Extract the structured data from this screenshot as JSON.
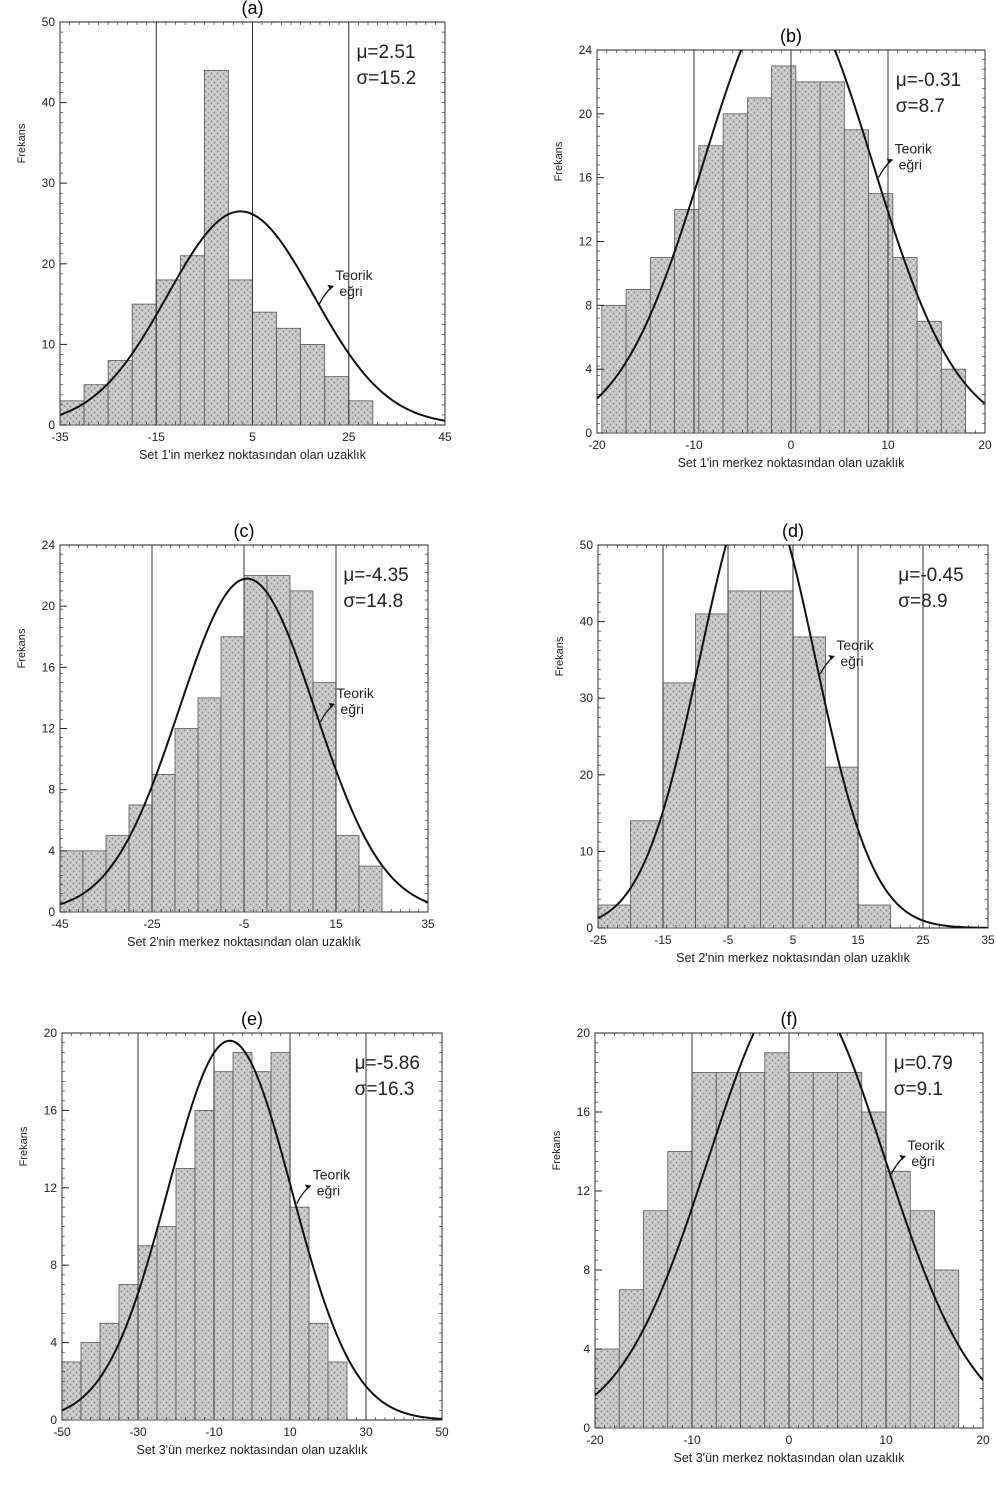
{
  "chart_data": [
    {
      "type": "bar",
      "panel": "(a)",
      "xlabel": "Set 1'in merkez noktasından olan uzaklık",
      "ylabel": "Frekans",
      "xlim": [
        -35,
        45
      ],
      "ylim": [
        0,
        50
      ],
      "x_ticks": [
        "-35",
        "-15",
        "5",
        "25",
        "45"
      ],
      "y_ticks": [
        "0",
        "10",
        "20",
        "30",
        "40",
        "50"
      ],
      "bin_width": 5,
      "bin_starts": [
        -35,
        -30,
        -25,
        -20,
        -15,
        -10,
        -5,
        0,
        5,
        10,
        15,
        20,
        25,
        30,
        35,
        40
      ],
      "values": [
        3,
        5,
        8,
        15,
        18,
        21,
        44,
        18,
        14,
        12,
        10,
        6,
        3,
        0,
        0,
        0
      ],
      "mu_label": "μ=2.51",
      "sigma_label": "σ=15.2",
      "mu": 2.51,
      "sigma": 15.2,
      "curve_peak": 26.5,
      "curve_label": "Teorik eğri",
      "grid": "vertical"
    },
    {
      "type": "bar",
      "panel": "(b)",
      "xlabel": "Set 1'in merkez noktasından olan uzaklık",
      "ylabel": "Frekans",
      "xlim": [
        -20,
        20
      ],
      "ylim": [
        0,
        24
      ],
      "x_ticks": [
        "-20",
        "-10",
        "0",
        "10",
        "20"
      ],
      "y_ticks": [
        "0",
        "4",
        "8",
        "12",
        "16",
        "20",
        "24"
      ],
      "bin_width": 2.5,
      "bin_starts": [
        -19.5,
        -17,
        -14.5,
        -12,
        -9.5,
        -7,
        -4.5,
        -2,
        0.5,
        3,
        5.5,
        8,
        10.5,
        13,
        15.5
      ],
      "values": [
        8,
        9,
        11,
        14,
        18,
        20,
        21,
        23,
        22,
        22,
        19,
        15,
        11,
        7,
        4
      ],
      "mu_label": "μ=-0.31",
      "sigma_label": "σ=8.7",
      "mu": -0.31,
      "sigma": 8.7,
      "curve_peak": 28,
      "curve_label": "Teorik eğri",
      "grid": "vertical"
    },
    {
      "type": "bar",
      "panel": "(c)",
      "xlabel": "Set 2'nin merkez noktasından olan uzaklık",
      "ylabel": "Frekans",
      "xlim": [
        -45,
        35
      ],
      "ylim": [
        0,
        24
      ],
      "x_ticks": [
        "-45",
        "-25",
        "-5",
        "15",
        "35"
      ],
      "y_ticks": [
        "0",
        "4",
        "8",
        "12",
        "16",
        "20",
        "24"
      ],
      "bin_width": 5,
      "bin_starts": [
        -45,
        -40,
        -35,
        -30,
        -25,
        -20,
        -15,
        -10,
        -5,
        0,
        5,
        10,
        15,
        20
      ],
      "values": [
        4,
        4,
        5,
        7,
        9,
        12,
        14,
        18,
        22,
        22,
        21,
        15,
        5,
        3
      ],
      "mu_label": "μ=-4.35",
      "sigma_label": "σ=14.8",
      "mu": -4.35,
      "sigma": 14.8,
      "curve_peak": 21.8,
      "curve_label": "Teorik eğri",
      "grid": "vertical"
    },
    {
      "type": "bar",
      "panel": "(d)",
      "xlabel": "Set 2'nin merkez noktasından olan uzaklık",
      "ylabel": "Frekans",
      "xlim": [
        -25,
        35
      ],
      "ylim": [
        0,
        50
      ],
      "x_ticks": [
        "-25",
        "-15",
        "-5",
        "5",
        "15",
        "25",
        "35"
      ],
      "y_ticks": [
        "0",
        "10",
        "20",
        "30",
        "40",
        "50"
      ],
      "bin_width": 5,
      "bin_starts": [
        -25,
        -20,
        -15,
        -10,
        -5,
        0,
        5,
        10,
        15
      ],
      "values": [
        3,
        14,
        32,
        41,
        44,
        44,
        38,
        21,
        3
      ],
      "mu_label": "μ=-0.45",
      "sigma_label": "σ=8.9",
      "mu": -0.45,
      "sigma": 8.9,
      "curve_peak": 58,
      "curve_label": "Teorik eğri",
      "grid": "vertical"
    },
    {
      "type": "bar",
      "panel": "(e)",
      "xlabel": "Set 3'ün merkez noktasından olan uzaklık",
      "ylabel": "Frekans",
      "xlim": [
        -50,
        50
      ],
      "ylim": [
        0,
        20
      ],
      "x_ticks": [
        "-50",
        "-30",
        "-10",
        "10",
        "30",
        "50"
      ],
      "y_ticks": [
        "0",
        "4",
        "8",
        "12",
        "16",
        "20"
      ],
      "bin_width": 5,
      "bin_starts": [
        -50,
        -45,
        -40,
        -35,
        -30,
        -25,
        -20,
        -15,
        -10,
        -5,
        0,
        5,
        10,
        15,
        20
      ],
      "values": [
        3,
        4,
        5,
        7,
        9,
        10,
        13,
        16,
        18,
        19,
        18,
        19,
        11,
        5,
        3
      ],
      "mu_label": "μ=-5.86",
      "sigma_label": "σ=16.3",
      "mu": -5.86,
      "sigma": 16.3,
      "curve_peak": 19.6,
      "curve_label": "Teorik eğri",
      "grid": "vertical"
    },
    {
      "type": "bar",
      "panel": "(f)",
      "xlabel": "Set 3'ün merkez noktasından olan uzaklık",
      "ylabel": "Frekans",
      "xlim": [
        -20,
        20
      ],
      "ylim": [
        0,
        20
      ],
      "x_ticks": [
        "-20",
        "-10",
        "0",
        "10",
        "20"
      ],
      "y_ticks": [
        "0",
        "4",
        "8",
        "12",
        "16",
        "20"
      ],
      "bin_width": 2.5,
      "bin_starts": [
        -20,
        -17.5,
        -15,
        -12.5,
        -10,
        -7.5,
        -5,
        -2.5,
        0,
        2.5,
        5,
        7.5,
        10,
        12.5,
        15
      ],
      "values": [
        4,
        7,
        11,
        14,
        18,
        18,
        18,
        19,
        18,
        18,
        18,
        16,
        13,
        11,
        8
      ],
      "mu_label": "μ=0.79",
      "sigma_label": "σ=9.1",
      "mu": 0.79,
      "sigma": 9.1,
      "curve_peak": 22.5,
      "curve_label": "Teorik eğri",
      "grid": "vertical"
    }
  ]
}
